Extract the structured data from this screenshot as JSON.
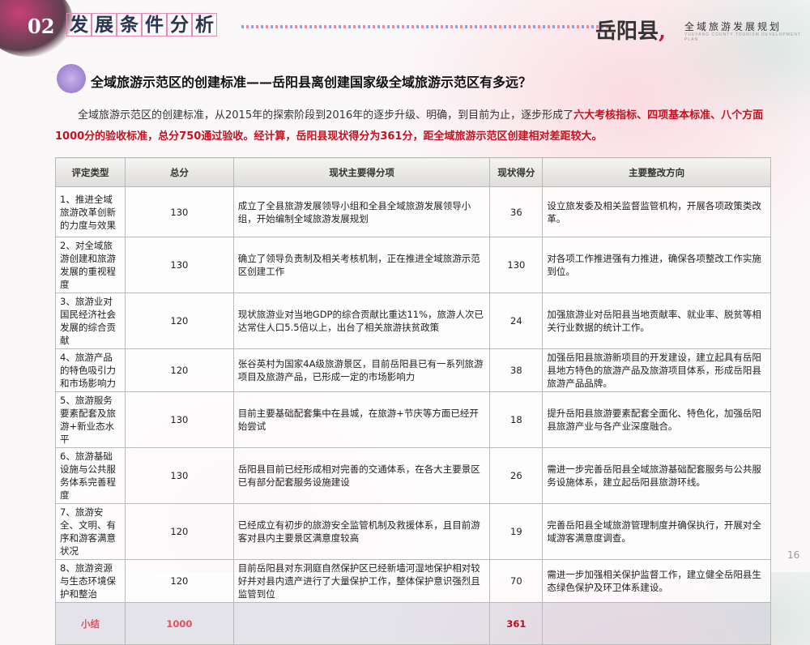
{
  "header": {
    "section_number": "02",
    "section_title": [
      "发",
      "展",
      "条",
      "件",
      "分",
      "析"
    ],
    "logo_main": "岳阳县",
    "logo_sub": "全域旅游发展规划",
    "logo_en": "YUEYANG COUNTY TOURISM DEVELOPMENT PLAN"
  },
  "heading": "全域旅游示范区的创建标准——岳阳县离创建国家级全域旅游示范区有多远？",
  "intro": {
    "plain": "全域旅游示范区的创建标准，从2015年的探索阶段到2016年的逐步升级、明确，到目前为止，逐步形成了",
    "highlight": "六大考核指标、四项基本标准、八个方面1000分的验收标准，总分750通过验收。经计算，岳阳县现状得分为361分，距全域旅游示范区创建相对差距较大。"
  },
  "table": {
    "headers": [
      "评定类型",
      "总分",
      "现状主要得分项",
      "现状得分",
      "主要整改方向"
    ],
    "rows": [
      [
        "1、推进全域旅游改革创新的力度与效果",
        "130",
        "成立了全县旅游发展领导小组和全县全域旅游发展领导小组，开始编制全域旅游发展规划",
        "36",
        "设立旅发委及相关监督监管机构，开展各项政策类改革。"
      ],
      [
        "2、对全域旅游创建和旅游发展的重视程度",
        "130",
        "确立了领导负责制及相关考核机制，正在推进全域旅游示范区创建工作",
        "130",
        "对各项工作推进强有力推进，确保各项整改工作实施到位。"
      ],
      [
        "3、旅游业对国民经济社会发展的综合贡献",
        "120",
        "现状旅游业对当地GDP的综合贡献比重达11%，旅游人次已达常住人口5.5倍以上，出台了相关旅游扶贫政策",
        "24",
        "加强旅游业对岳阳县当地贡献率、就业率、脱贫等相关行业数据的统计工作。"
      ],
      [
        "4、旅游产品的特色吸引力和市场影响力",
        "120",
        "张谷英村为国家4A级旅游景区，目前岳阳县已有一系列旅游项目及旅游产品，已形成一定的市场影响力",
        "38",
        "加强岳阳县旅游新项目的开发建设，建立起具有岳阳县地方特色的旅游产品及旅游项目体系，形成岳阳县旅游产品品牌。"
      ],
      [
        "5、旅游服务要素配套及旅游+新业态水平",
        "130",
        "目前主要基础配套集中在县城，在旅游+节庆等方面已经开始尝试",
        "18",
        "提升岳阳县旅游要素配套全面化、特色化，加强岳阳县旅游产业与各产业深度融合。"
      ],
      [
        "6、旅游基础设施与公共服务体系完善程度",
        "130",
        "岳阳县目前已经形成相对完善的交通体系，在各大主要景区已有部分配套服务设施建设",
        "26",
        "需进一步完善岳阳县全域旅游基础配套服务与公共服务设施体系，建立起岳阳县旅游环线。"
      ],
      [
        "7、旅游安全、文明、有序和游客满意状况",
        "120",
        "已经成立有初步的旅游安全监管机制及救援体系，且目前游客对县内主要景区满意度较高",
        "19",
        "完善岳阳县全域旅游管理制度并确保执行，开展对全域游客满意度调查。"
      ],
      [
        "8、旅游资源与生态环境保护和整治",
        "120",
        "目前岳阳县对东洞庭自然保护区已经新墙河湿地保护相对较好并对县内遗产进行了大量保护工作，整体保护意识强烈且监管到位",
        "70",
        "需进一步加强相关保护监督工作，建立健全岳阳县生态绿色保护及环卫体系建设。"
      ]
    ],
    "summary": {
      "label": "小结",
      "total": "1000",
      "score": "361"
    }
  },
  "page_number": "16"
}
